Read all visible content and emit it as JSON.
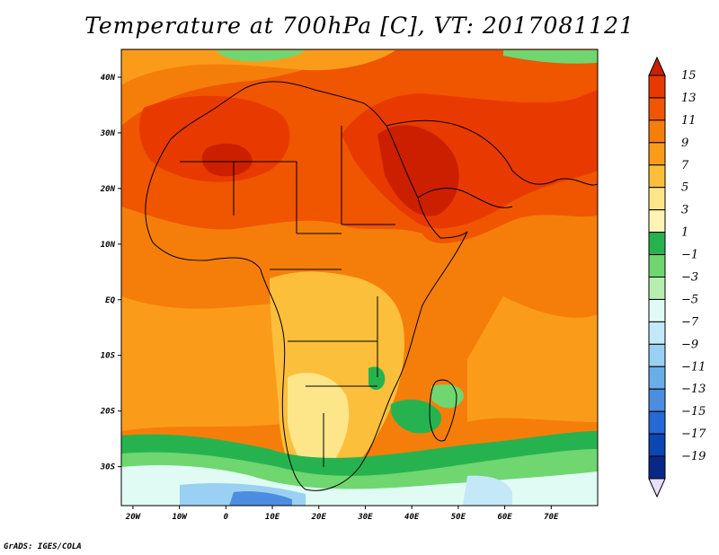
{
  "title": "Temperature at 700hPa [C], VT: 2017081121",
  "footer": "GrADS: IGES/COLA",
  "axes": {
    "lon_ticks": [
      {
        "v": -20,
        "label": "20W"
      },
      {
        "v": -10,
        "label": "10W"
      },
      {
        "v": 0,
        "label": "0"
      },
      {
        "v": 10,
        "label": "10E"
      },
      {
        "v": 20,
        "label": "20E"
      },
      {
        "v": 30,
        "label": "30E"
      },
      {
        "v": 40,
        "label": "40E"
      },
      {
        "v": 50,
        "label": "50E"
      },
      {
        "v": 60,
        "label": "60E"
      },
      {
        "v": 70,
        "label": "70E"
      }
    ],
    "lat_ticks": [
      {
        "v": 40,
        "label": "40N"
      },
      {
        "v": 30,
        "label": "30N"
      },
      {
        "v": 20,
        "label": "20N"
      },
      {
        "v": 10,
        "label": "10N"
      },
      {
        "v": 0,
        "label": "EQ"
      },
      {
        "v": -10,
        "label": "10S"
      },
      {
        "v": -20,
        "label": "20S"
      },
      {
        "v": -30,
        "label": "30S"
      }
    ],
    "lon_range": [
      -22.5,
      80
    ],
    "lat_range": [
      -37,
      45
    ]
  },
  "colorbar": {
    "levels": [
      15,
      13,
      11,
      9,
      7,
      5,
      3,
      1,
      -1,
      -3,
      -5,
      -7,
      -9,
      -11,
      -13,
      -15,
      -17,
      -19
    ],
    "labels": [
      "15",
      "13",
      "11",
      "9",
      "7",
      "5",
      "3",
      "1",
      "−1",
      "−3",
      "−5",
      "−7",
      "−9",
      "−11",
      "−13",
      "−15",
      "−17",
      "−19"
    ],
    "colors": [
      "#cc1f00",
      "#e83a00",
      "#f05500",
      "#f57e0a",
      "#fa9c1a",
      "#fbbf3c",
      "#fde68a",
      "#fff3b5",
      "#26b34f",
      "#70d670",
      "#b8edb0",
      "#e0fbf3",
      "#c4e8f8",
      "#9ad0f3",
      "#6aaee9",
      "#4c8de0",
      "#2668d4",
      "#0c45b4",
      "#082888",
      "#e8e0ff"
    ]
  }
}
